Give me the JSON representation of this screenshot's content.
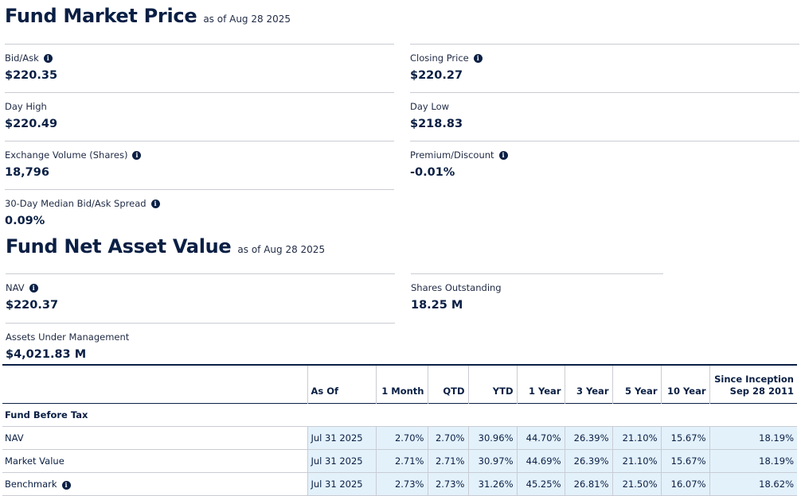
{
  "market_price": {
    "title": "Fund Market Price",
    "as_of": "as of Aug 28 2025",
    "metrics": [
      {
        "label": "Bid/Ask",
        "value": "$220.35",
        "info": true
      },
      {
        "label": "Closing Price",
        "value": "$220.27",
        "info": true
      },
      {
        "label": "Day High",
        "value": "$220.49",
        "info": false
      },
      {
        "label": "Day Low",
        "value": "$218.83",
        "info": false
      },
      {
        "label": "Exchange Volume (Shares)",
        "value": "18,796",
        "info": true
      },
      {
        "label": "Premium/Discount",
        "value": "-0.01%",
        "info": true
      },
      {
        "label": "30-Day Median Bid/Ask Spread",
        "value": "0.09%",
        "info": true
      }
    ]
  },
  "nav_section": {
    "title": "Fund Net Asset Value",
    "as_of": "as of Aug 28 2025",
    "metrics": [
      {
        "label": "NAV",
        "value": "$220.37",
        "info": true
      },
      {
        "label": "Shares Outstanding",
        "value": "18.25 M",
        "info": false
      },
      {
        "label": "Assets Under Management",
        "value": "$4,021.83 M",
        "info": false
      }
    ]
  },
  "performance": {
    "headers": [
      "",
      "As Of",
      "1 Month",
      "QTD",
      "YTD",
      "1 Year",
      "3 Year",
      "5 Year",
      "10 Year",
      "Since Inception",
      "Sep 28 2011"
    ],
    "group_label": "Fund Before Tax",
    "rows": [
      {
        "label": "NAV",
        "info": false,
        "cells": [
          "Jul 31 2025",
          "2.70%",
          "2.70%",
          "30.96%",
          "44.70%",
          "26.39%",
          "21.10%",
          "15.67%",
          "18.19%"
        ]
      },
      {
        "label": "Market Value",
        "info": false,
        "cells": [
          "Jul 31 2025",
          "2.71%",
          "2.71%",
          "30.97%",
          "44.69%",
          "26.39%",
          "21.10%",
          "15.67%",
          "18.19%"
        ]
      },
      {
        "label": "Benchmark",
        "info": true,
        "cells": [
          "Jul 31 2025",
          "2.73%",
          "2.73%",
          "31.26%",
          "45.25%",
          "26.81%",
          "21.50%",
          "16.07%",
          "18.62%"
        ]
      }
    ]
  },
  "icons": {
    "info": "info-icon"
  },
  "colors": {
    "text": "#0a1f44",
    "cell_bg": "#e3f1fb",
    "divider": "#c9ccd3"
  }
}
